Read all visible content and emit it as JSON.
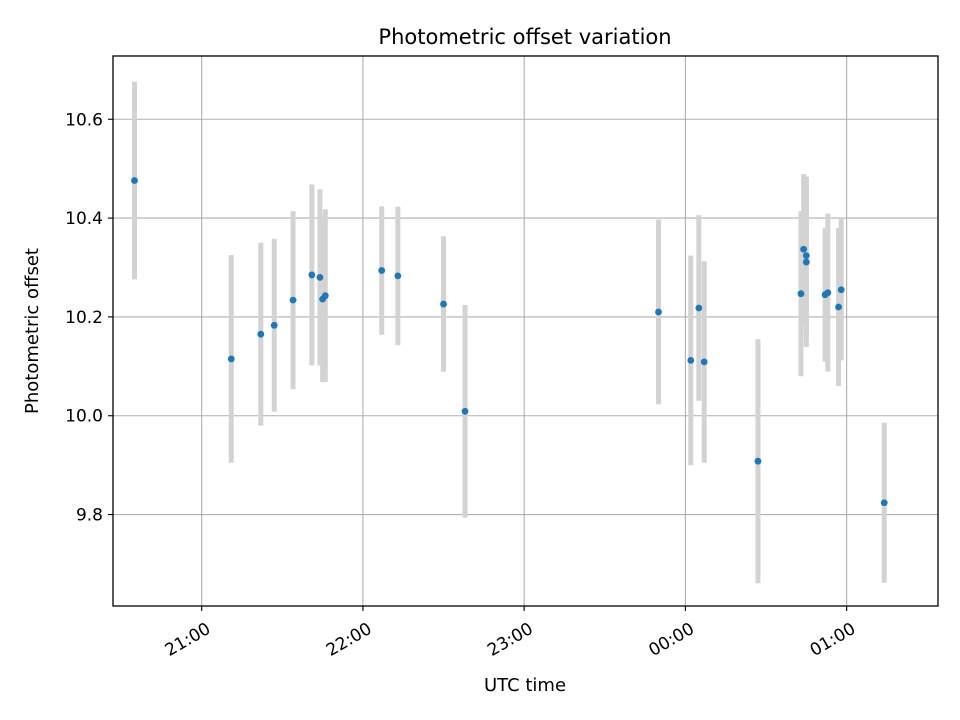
{
  "chart_data": {
    "type": "scatter",
    "title": "Photometric offset variation",
    "xlabel": "UTC time",
    "ylabel": "Photometric offset",
    "x_unit": "UTC time (HH:MM), overnight",
    "xlim": [
      "20:35",
      "01:28"
    ],
    "ylim": [
      9.615,
      10.728
    ],
    "xticks": [
      "21:00",
      "22:00",
      "23:00",
      "00:00",
      "01:00"
    ],
    "yticks": [
      9.8,
      10.0,
      10.2,
      10.4,
      10.6
    ],
    "ytick_labels": [
      "9.8",
      "10.0",
      "10.2",
      "10.4",
      "10.6"
    ],
    "grid": true,
    "legend": "none",
    "marker_color": "#1f77b4",
    "errorbar_color": "#d3d3d3",
    "series": [
      {
        "points": [
          {
            "x": "20:35",
            "y": 10.476,
            "err": 0.2
          },
          {
            "x": "21:11",
            "y": 10.115,
            "err": 0.21
          },
          {
            "x": "21:22",
            "y": 10.165,
            "err": 0.185
          },
          {
            "x": "21:27",
            "y": 10.183,
            "err": 0.175
          },
          {
            "x": "21:34",
            "y": 10.234,
            "err": 0.18
          },
          {
            "x": "21:41",
            "y": 10.285,
            "err": 0.183
          },
          {
            "x": "21:44",
            "y": 10.28,
            "err": 0.178
          },
          {
            "x": "21:45",
            "y": 10.236,
            "err": 0.168
          },
          {
            "x": "21:46",
            "y": 10.243,
            "err": 0.175
          },
          {
            "x": "22:07",
            "y": 10.294,
            "err": 0.13
          },
          {
            "x": "22:13",
            "y": 10.283,
            "err": 0.14
          },
          {
            "x": "22:30",
            "y": 10.226,
            "err": 0.137
          },
          {
            "x": "22:38",
            "y": 10.009,
            "err": 0.215
          },
          {
            "x": "23:50",
            "y": 10.21,
            "err": 0.187
          },
          {
            "x": "00:02",
            "y": 10.112,
            "err": 0.212
          },
          {
            "x": "00:05",
            "y": 10.218,
            "err": 0.188
          },
          {
            "x": "00:07",
            "y": 10.109,
            "err": 0.204
          },
          {
            "x": "00:27",
            "y": 9.908,
            "err": 0.247
          },
          {
            "x": "00:43",
            "y": 10.247,
            "err": 0.167
          },
          {
            "x": "00:44",
            "y": 10.337,
            "err": 0.152
          },
          {
            "x": "00:45",
            "y": 10.311,
            "err": 0.172
          },
          {
            "x": "00:45",
            "y": 10.324,
            "err": 0.16
          },
          {
            "x": "00:52",
            "y": 10.245,
            "err": 0.135
          },
          {
            "x": "00:53",
            "y": 10.249,
            "err": 0.16
          },
          {
            "x": "00:57",
            "y": 10.22,
            "err": 0.16
          },
          {
            "x": "00:58",
            "y": 10.255,
            "err": 0.143
          },
          {
            "x": "01:14",
            "y": 9.824,
            "err": 0.162
          }
        ]
      }
    ]
  }
}
